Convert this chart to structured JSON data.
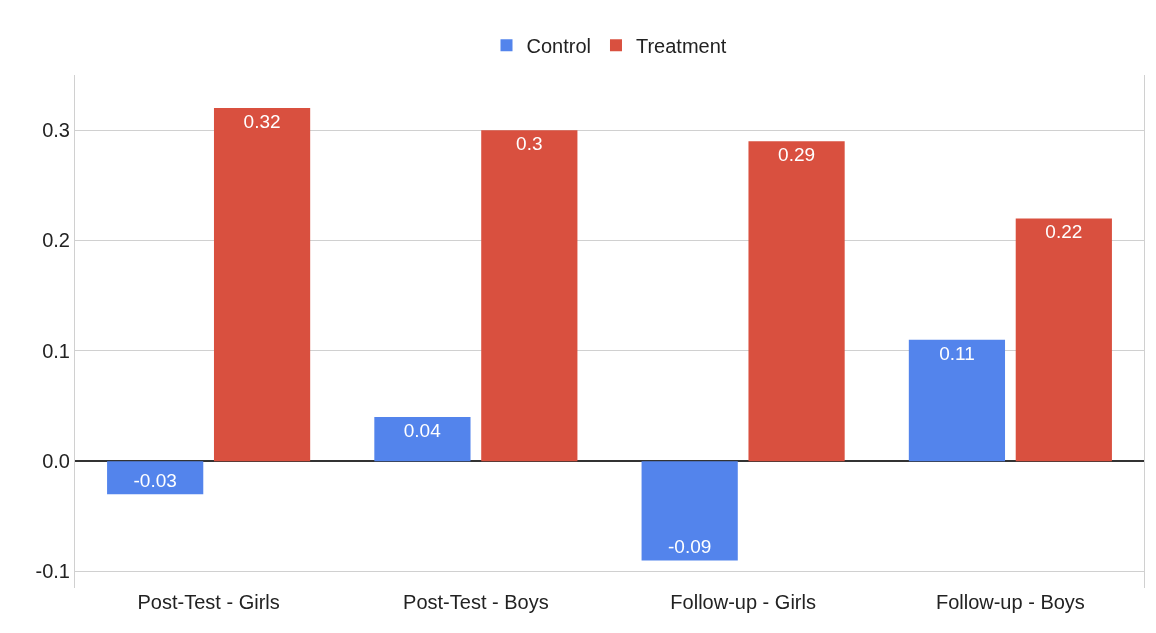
{
  "chart_data": {
    "type": "bar",
    "categories": [
      "Post-Test - Girls",
      "Post-Test - Boys",
      "Follow-up - Girls",
      "Follow-up - Boys"
    ],
    "series": [
      {
        "name": "Control",
        "color": "#5384ec",
        "values": [
          -0.03,
          0.04,
          -0.09,
          0.11
        ]
      },
      {
        "name": "Treatment",
        "color": "#d9503f",
        "values": [
          0.32,
          0.3,
          0.29,
          0.22
        ]
      }
    ],
    "ylim": [
      -0.115,
      0.35
    ],
    "yticks": [
      {
        "value": -0.1,
        "label": "-0.1"
      },
      {
        "value": 0,
        "label": "0.0"
      },
      0.1,
      0.2,
      0.3
    ],
    "grid": "y",
    "legend": "top",
    "data_labels": true
  }
}
